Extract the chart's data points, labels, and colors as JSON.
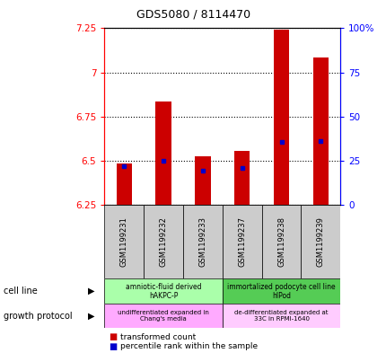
{
  "title": "GDS5080 / 8114470",
  "samples": [
    "GSM1199231",
    "GSM1199232",
    "GSM1199233",
    "GSM1199237",
    "GSM1199238",
    "GSM1199239"
  ],
  "red_values": [
    6.482,
    6.833,
    6.523,
    6.553,
    7.242,
    7.082
  ],
  "blue_values": [
    6.468,
    6.5,
    6.441,
    6.46,
    6.605,
    6.612
  ],
  "ymin": 6.25,
  "ymax": 7.25,
  "yticks": [
    6.25,
    6.5,
    6.75,
    7.0,
    7.25
  ],
  "ytick_labels": [
    "6.25",
    "6.5",
    "6.75",
    "7",
    "7.25"
  ],
  "y2ticks": [
    0,
    25,
    50,
    75,
    100
  ],
  "y2tick_labels": [
    "0",
    "25",
    "50",
    "75",
    "100%"
  ],
  "bar_bottom": 6.25,
  "bar_color": "#cc0000",
  "blue_color": "#0000cc",
  "cell_line_groups": [
    {
      "label": "amniotic-fluid derived\nhAKPC-P",
      "start": 0,
      "end": 3,
      "color": "#aaffaa"
    },
    {
      "label": "immortalized podocyte cell line\nhIPod",
      "start": 3,
      "end": 6,
      "color": "#55cc55"
    }
  ],
  "growth_protocol_groups": [
    {
      "label": "undifferentiated expanded in\nChang's media",
      "start": 0,
      "end": 3,
      "color": "#ffaaff"
    },
    {
      "label": "de-differentiated expanded at\n33C in RPMI-1640",
      "start": 3,
      "end": 6,
      "color": "#ffccff"
    }
  ]
}
